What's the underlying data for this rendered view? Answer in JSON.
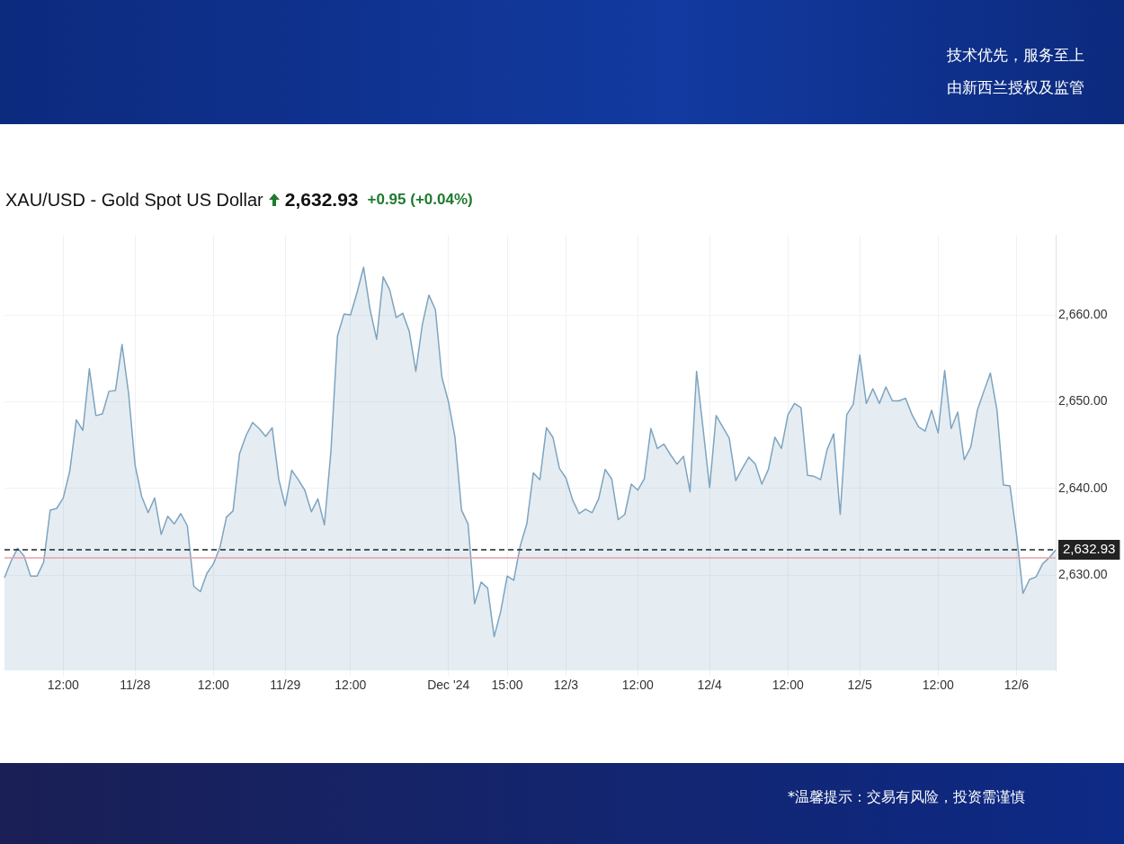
{
  "chart_data": {
    "type": "area",
    "title": "XAU/USD - Gold Spot US Dollar",
    "annotations": [
      "2,632.93",
      "+0.95 (+0.04%)",
      "技术优先，服务至上",
      "由新西兰授权及监管",
      "*温馨提示：交易有风险，投资需谨慎"
    ],
    "categories": [
      null,
      null,
      null,
      null,
      null,
      null,
      null,
      null,
      null,
      "12:00",
      null,
      null,
      null,
      null,
      null,
      null,
      null,
      null,
      null,
      null,
      "11/28",
      null,
      null,
      null,
      null,
      null,
      null,
      null,
      null,
      null,
      null,
      null,
      "12:00",
      null,
      null,
      null,
      null,
      null,
      null,
      null,
      null,
      null,
      null,
      "11/29",
      null,
      null,
      null,
      null,
      null,
      null,
      null,
      null,
      null,
      "12:00",
      null,
      null,
      null,
      null,
      null,
      null,
      null,
      null,
      null,
      null,
      null,
      null,
      null,
      null,
      "Dec '24",
      null,
      null,
      null,
      null,
      null,
      null,
      null,
      null,
      "15:00",
      null,
      null,
      null,
      null,
      null,
      null,
      null,
      null,
      "12/3",
      null,
      null,
      null,
      null,
      null,
      null,
      null,
      null,
      null,
      null,
      "12:00",
      null,
      null,
      null,
      null,
      null,
      null,
      null,
      null,
      null,
      null,
      "12/4",
      null,
      null,
      null,
      null,
      null,
      null,
      null,
      null,
      null,
      null,
      null,
      "12:00",
      null,
      null,
      null,
      null,
      null,
      null,
      null,
      null,
      null,
      null,
      "12/5",
      null,
      null,
      null,
      null,
      null,
      null,
      null,
      null,
      null,
      null,
      null,
      "12:00",
      null,
      null,
      null,
      null,
      null,
      null,
      null,
      null,
      null,
      null,
      null,
      "12/6",
      null,
      null,
      null,
      null,
      null,
      null
    ],
    "series": [
      {
        "color": "#7ea4c0",
        "values": [
          2629.7,
          2631.6,
          2633.1,
          2632.2,
          2629.9,
          2629.9,
          2631.5,
          2637.5,
          2637.7,
          2638.9,
          2642.0,
          2647.9,
          2646.7,
          2653.8,
          2648.4,
          2648.6,
          2651.2,
          2651.3,
          2656.6,
          2651.0,
          2642.7,
          2639.1,
          2637.2,
          2638.9,
          2634.7,
          2636.8,
          2635.9,
          2637.1,
          2635.7,
          2628.7,
          2628.1,
          2630.2,
          2631.3,
          2633.2,
          2636.7,
          2637.4,
          2644.0,
          2646.1,
          2647.6,
          2646.9,
          2646.0,
          2647.0,
          2641.1,
          2638.0,
          2642.1,
          2641.0,
          2639.8,
          2637.3,
          2638.8,
          2635.8,
          2644.3,
          2657.6,
          2660.1,
          2660.0,
          2662.6,
          2665.5,
          2660.6,
          2657.2,
          2664.4,
          2662.9,
          2659.7,
          2660.2,
          2658.1,
          2653.5,
          2658.9,
          2662.3,
          2660.6,
          2652.8,
          2650.0,
          2645.9,
          2637.5,
          2635.9,
          2626.7,
          2629.2,
          2628.5,
          2622.9,
          2625.8,
          2629.9,
          2629.4,
          2633.4,
          2635.9,
          2641.8,
          2641.0,
          2647.0,
          2645.9,
          2642.3,
          2641.2,
          2638.7,
          2637.1,
          2637.6,
          2637.2,
          2638.8,
          2642.2,
          2641.1,
          2636.4,
          2637.0,
          2640.5,
          2639.8,
          2641.1,
          2646.9,
          2644.6,
          2645.1,
          2643.9,
          2642.8,
          2643.7,
          2639.6,
          2653.5,
          2646.9,
          2640.1,
          2648.4,
          2647.1,
          2645.8,
          2640.9,
          2642.3,
          2643.6,
          2642.8,
          2640.5,
          2642.2,
          2645.9,
          2644.6,
          2648.5,
          2649.8,
          2649.3,
          2641.5,
          2641.4,
          2641.0,
          2644.5,
          2646.3,
          2637.0,
          2648.5,
          2649.7,
          2655.4,
          2649.8,
          2651.5,
          2649.8,
          2651.7,
          2650.1,
          2650.1,
          2650.4,
          2648.5,
          2647.1,
          2646.6,
          2649.0,
          2646.4,
          2653.6,
          2646.9,
          2648.8,
          2643.3,
          2644.8,
          2649.0,
          2651.2,
          2653.3,
          2649.1,
          2640.4,
          2640.3,
          2634.7,
          2627.9,
          2629.5,
          2629.8,
          2631.3,
          2632.0,
          2632.9
        ]
      }
    ],
    "ylim": [
      2619,
      2669.2
    ],
    "yticks": [
      {
        "value": 2630,
        "label": "2,630.00"
      },
      {
        "value": 2640,
        "label": "2,640.00"
      },
      {
        "value": 2650,
        "label": "2,650.00"
      },
      {
        "value": 2660,
        "label": "2,660.00"
      }
    ],
    "ref_lines": [
      {
        "axis": "y",
        "value": 2632.93,
        "label": "2,632.93",
        "color": "#222222",
        "line_style": "dashed"
      },
      {
        "axis": "y",
        "value": 2631.98,
        "color": "#e8a0a8",
        "line_style": "solid"
      }
    ],
    "grid": true,
    "legend": false
  }
}
